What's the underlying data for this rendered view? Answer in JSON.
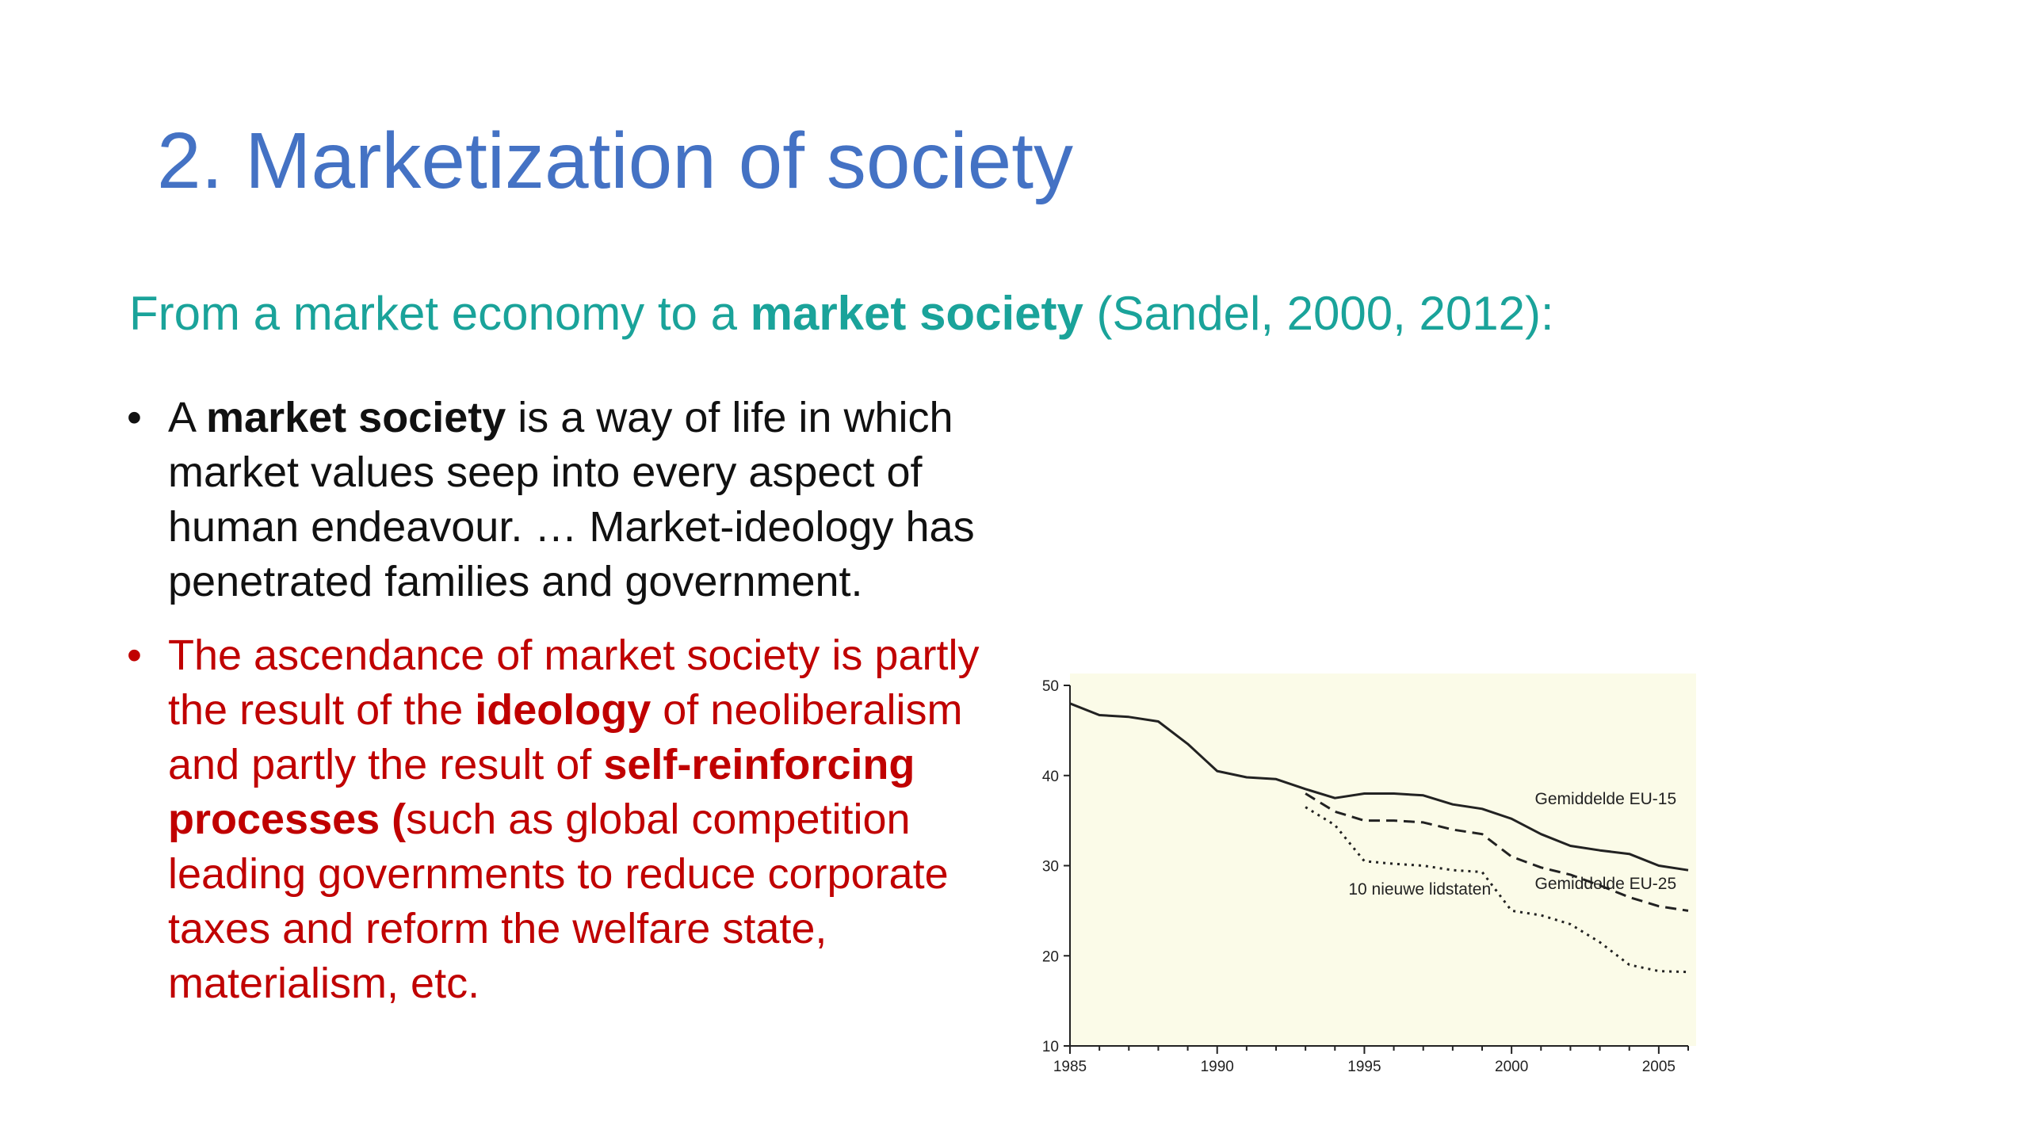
{
  "slide": {
    "title": "2. Marketization of society",
    "subtitle_pre": "From a market economy to a ",
    "subtitle_bold": "market society",
    "subtitle_post": " (Sandel, 2000, 2012):"
  },
  "bullets": [
    {
      "marker": "•",
      "t1": "A ",
      "t2_bold": "market society",
      "t3": " is a way of life in which market values seep into every aspect of human endeavour. … Market-ideology has penetrated families and government."
    },
    {
      "marker": "•",
      "t1": "The ascendance of market society is partly the result of the ",
      "t2_bold": "ideology",
      "t3": " of neoliberalism and partly the result of ",
      "t4_bold": "self-reinforcing processes (",
      "t5": "such as global competition leading governments to reduce corporate taxes and reform the welfare state, materialism, etc."
    }
  ],
  "colors": {
    "title": "#4472c4",
    "subtitle": "#1aa39a",
    "bullet_black": "#111111",
    "bullet_red": "#c00000",
    "chart_background": "#fbfbe8"
  },
  "chart_data": {
    "type": "line",
    "title": "",
    "xlabel": "",
    "ylabel": "",
    "xlim": [
      1985,
      2006
    ],
    "ylim": [
      10,
      50
    ],
    "x_ticks": [
      1985,
      1990,
      1995,
      2000,
      2005
    ],
    "y_ticks": [
      10,
      20,
      30,
      40,
      50
    ],
    "grid": false,
    "series": [
      {
        "name": "Gemiddelde EU-15",
        "style": "solid",
        "x": [
          1985,
          1986,
          1987,
          1988,
          1989,
          1990,
          1991,
          1992,
          1993,
          1994,
          1995,
          1996,
          1997,
          1998,
          1999,
          2000,
          2001,
          2002,
          2003,
          2004,
          2005,
          2006
        ],
        "y": [
          48,
          46.7,
          46.5,
          46,
          43.5,
          40.5,
          39.8,
          39.6,
          38.5,
          37.5,
          38,
          38,
          37.8,
          36.8,
          36.3,
          35.2,
          33.5,
          32.2,
          31.7,
          31.3,
          30,
          29.5
        ]
      },
      {
        "name": "Gemiddelde EU-25",
        "style": "dashed",
        "x": [
          1993,
          1994,
          1995,
          1996,
          1997,
          1998,
          1999,
          2000,
          2001,
          2002,
          2003,
          2004,
          2005,
          2006
        ],
        "y": [
          38,
          36,
          35,
          35,
          34.8,
          34,
          33.5,
          31,
          29.8,
          29,
          27.8,
          26.5,
          25.5,
          25
        ]
      },
      {
        "name": "10 nieuwe lidstaten",
        "style": "dotted",
        "x": [
          1993,
          1994,
          1995,
          1996,
          1997,
          1998,
          1999,
          2000,
          2001,
          2002,
          2003,
          2004,
          2005,
          2006
        ],
        "y": [
          36.5,
          34.5,
          30.5,
          30.2,
          30,
          29.5,
          29.3,
          25,
          24.5,
          23.5,
          21.5,
          19,
          18.3,
          18.2
        ]
      }
    ]
  }
}
